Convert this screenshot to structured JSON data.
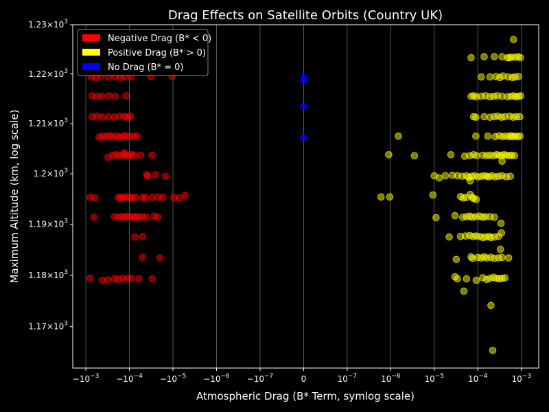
{
  "chart_data": {
    "type": "scatter",
    "title": "Drag Effects on Satellite Orbits (Country UK)",
    "xlabel": "Atmospheric Drag (B* Term, symlog scale)",
    "ylabel": "Maximum Altitude (km, log scale)",
    "x_scale": "symlog",
    "x_linthresh": 1e-07,
    "y_scale": "log",
    "xlim": [
      -0.002,
      0.0025
    ],
    "ylim": [
      1162,
      1230
    ],
    "x_ticks": [
      {
        "value": -0.001,
        "base": "−10",
        "exp": "−3"
      },
      {
        "value": -0.0001,
        "base": "−10",
        "exp": "−4"
      },
      {
        "value": -1e-05,
        "base": "−10",
        "exp": "−5"
      },
      {
        "value": -1e-06,
        "base": "−10",
        "exp": "−6"
      },
      {
        "value": -1e-07,
        "base": "−10",
        "exp": "−7"
      },
      {
        "value": 0,
        "base": "0",
        "exp": ""
      },
      {
        "value": 1e-07,
        "base": "10",
        "exp": "−7"
      },
      {
        "value": 1e-06,
        "base": "10",
        "exp": "−6"
      },
      {
        "value": 1e-05,
        "base": "10",
        "exp": "−5"
      },
      {
        "value": 0.0001,
        "base": "10",
        "exp": "−4"
      },
      {
        "value": 0.001,
        "base": "10",
        "exp": "−3"
      }
    ],
    "y_ticks": [
      {
        "value": 1170,
        "mant": "1.17",
        "base": "10",
        "exp": "3"
      },
      {
        "value": 1180,
        "mant": "1.18",
        "base": "10",
        "exp": "3"
      },
      {
        "value": 1190,
        "mant": "1.19",
        "base": "10",
        "exp": "3"
      },
      {
        "value": 1200,
        "mant": "1.2",
        "base": "10",
        "exp": "3"
      },
      {
        "value": 1210,
        "mant": "1.21",
        "base": "10",
        "exp": "3"
      },
      {
        "value": 1220,
        "mant": "1.22",
        "base": "10",
        "exp": "3"
      },
      {
        "value": 1230,
        "mant": "1.23",
        "base": "10",
        "exp": "3"
      }
    ],
    "grid": "vertical",
    "legend_position": "top-left",
    "series": [
      {
        "name": "Negative Drag (B* < 0)",
        "color": "#ff0000",
        "points": [
          [
            -0.00075,
            1219.4
          ],
          [
            -0.00058,
            1219.3
          ],
          [
            -0.00045,
            1219.6
          ],
          [
            -0.0003,
            1219.4
          ],
          [
            -0.00021,
            1219.5
          ],
          [
            -0.00016,
            1219.3
          ],
          [
            -0.00013,
            1219.5
          ],
          [
            -9e-05,
            1219.4
          ],
          [
            -3.2e-05,
            1219.5
          ],
          [
            -1.05e-05,
            1219.5
          ],
          [
            -0.00072,
            1215.6
          ],
          [
            -0.00056,
            1215.5
          ],
          [
            -0.00043,
            1215.5
          ],
          [
            -0.0003,
            1215.6
          ],
          [
            -0.00021,
            1215.5
          ],
          [
            -0.00012,
            1215.6
          ],
          [
            -0.00071,
            1211.4
          ],
          [
            -0.00055,
            1211.5
          ],
          [
            -0.00042,
            1211.3
          ],
          [
            -0.0003,
            1211.4
          ],
          [
            -0.00022,
            1211.3
          ],
          [
            -0.00017,
            1211.5
          ],
          [
            -0.00013,
            1211.4
          ],
          [
            -0.00011,
            1211.3
          ],
          [
            -9.4e-05,
            1211.5
          ],
          [
            -0.0005,
            1207.3
          ],
          [
            -0.00042,
            1207.5
          ],
          [
            -0.00035,
            1207.4
          ],
          [
            -0.00029,
            1207.6
          ],
          [
            -0.00025,
            1207.4
          ],
          [
            -0.0002,
            1207.5
          ],
          [
            -0.00017,
            1207.3
          ],
          [
            -0.00014,
            1207.5
          ],
          [
            -0.00012,
            1207.6
          ],
          [
            -0.0001,
            1207.4
          ],
          [
            -8e-05,
            1207.5
          ],
          [
            -6.6e-05,
            1207.5
          ],
          [
            -0.00024,
            1203.7
          ],
          [
            -0.0002,
            1203.8
          ],
          [
            -0.00017,
            1203.6
          ],
          [
            -0.00014,
            1203.8
          ],
          [
            -0.00012,
            1203.7
          ],
          [
            -0.0001,
            1203.6
          ],
          [
            -9e-05,
            1203.8
          ],
          [
            -7.6e-05,
            1203.7
          ],
          [
            -5.5e-05,
            1203.7
          ],
          [
            -3e-05,
            1203.7
          ],
          [
            -0.00013,
            1204.2
          ],
          [
            -0.00031,
            1203.3
          ],
          [
            -4e-05,
            1199.8
          ],
          [
            -3.8e-05,
            1199.5
          ],
          [
            -2.5e-05,
            1199.8
          ],
          [
            -1.5e-05,
            1199.5
          ],
          [
            -0.0008,
            1195.3
          ],
          [
            -0.00062,
            1195.2
          ],
          [
            -0.00018,
            1195.3
          ],
          [
            -0.00016,
            1195.2
          ],
          [
            -0.00014,
            1195.3
          ],
          [
            -0.00012,
            1195.4
          ],
          [
            -0.0001,
            1195.3
          ],
          [
            -8.8e-05,
            1195.2
          ],
          [
            -7.2e-05,
            1195.3
          ],
          [
            -5e-05,
            1195.3
          ],
          [
            -4.3e-05,
            1195.3
          ],
          [
            -3e-05,
            1195.3
          ],
          [
            -2.2e-05,
            1195.4
          ],
          [
            -1.7e-05,
            1195.3
          ],
          [
            -9.5e-06,
            1195.3
          ],
          [
            -7.2e-06,
            1195.2
          ],
          [
            -5.3e-06,
            1195.7
          ],
          [
            -0.00065,
            1191.4
          ],
          [
            -0.00022,
            1191.5
          ],
          [
            -0.00018,
            1191.4
          ],
          [
            -0.00015,
            1191.5
          ],
          [
            -0.00013,
            1191.4
          ],
          [
            -0.00011,
            1191.6
          ],
          [
            -9.5e-05,
            1191.5
          ],
          [
            -8e-05,
            1191.4
          ],
          [
            -7e-05,
            1191.5
          ],
          [
            -6e-05,
            1191.4
          ],
          [
            -5e-05,
            1191.5
          ],
          [
            -4e-05,
            1191.4
          ],
          [
            -2.7e-05,
            1191.6
          ],
          [
            -2.2e-05,
            1191.4
          ],
          [
            -7.5e-05,
            1187.5
          ],
          [
            -5e-05,
            1187.6
          ],
          [
            -5e-05,
            1183.5
          ],
          [
            -2e-05,
            1183.4
          ],
          [
            -0.0008,
            1179.4
          ],
          [
            -0.00042,
            1179.0
          ],
          [
            -0.00031,
            1179.1
          ],
          [
            -0.00022,
            1179.3
          ],
          [
            -0.00018,
            1179.2
          ],
          [
            -0.00014,
            1179.4
          ],
          [
            -0.00011,
            1179.3
          ],
          [
            -9e-05,
            1179.4
          ],
          [
            -6e-05,
            1179.3
          ],
          [
            -3e-05,
            1179.3
          ]
        ]
      },
      {
        "name": "Positive Drag (B* > 0)",
        "color": "#ffff00",
        "points": [
          [
            0.00066,
            1227.0
          ],
          [
            7e-05,
            1223.3
          ],
          [
            0.00014,
            1223.5
          ],
          [
            0.00024,
            1223.5
          ],
          [
            0.00036,
            1223.5
          ],
          [
            0.00048,
            1223.3
          ],
          [
            0.00053,
            1223.3
          ],
          [
            0.0006,
            1223.4
          ],
          [
            0.00072,
            1223.4
          ],
          [
            0.00084,
            1223.5
          ],
          [
            0.00095,
            1223.3
          ],
          [
            0.00012,
            1219.4
          ],
          [
            0.00019,
            1219.4
          ],
          [
            0.00026,
            1219.5
          ],
          [
            0.00032,
            1219.3
          ],
          [
            0.00038,
            1219.6
          ],
          [
            0.0005,
            1219.4
          ],
          [
            0.00062,
            1219.3
          ],
          [
            0.00072,
            1219.4
          ],
          [
            0.00086,
            1219.5
          ],
          [
            7e-05,
            1215.5
          ],
          [
            8e-05,
            1215.6
          ],
          [
            9.2e-05,
            1215.4
          ],
          [
            0.00012,
            1215.5
          ],
          [
            0.00015,
            1215.6
          ],
          [
            0.00019,
            1215.4
          ],
          [
            0.00023,
            1215.5
          ],
          [
            0.00028,
            1215.6
          ],
          [
            0.00036,
            1215.5
          ],
          [
            0.00048,
            1215.4
          ],
          [
            0.00058,
            1215.5
          ],
          [
            0.00066,
            1215.6
          ],
          [
            0.00075,
            1215.4
          ],
          [
            0.00086,
            1215.5
          ],
          [
            0.00096,
            1215.6
          ],
          [
            8e-05,
            1211.4
          ],
          [
            9e-05,
            1211.3
          ],
          [
            0.00014,
            1211.4
          ],
          [
            0.00019,
            1211.3
          ],
          [
            0.00024,
            1211.4
          ],
          [
            0.00029,
            1211.5
          ],
          [
            0.00035,
            1211.3
          ],
          [
            0.00042,
            1211.4
          ],
          [
            0.00054,
            1211.5
          ],
          [
            0.00065,
            1211.3
          ],
          [
            0.00077,
            1211.4
          ],
          [
            0.00092,
            1211.4
          ],
          [
            1.5e-06,
            1207.5
          ],
          [
            9e-05,
            1207.5
          ],
          [
            0.00017,
            1207.5
          ],
          [
            0.00025,
            1207.4
          ],
          [
            0.00031,
            1207.6
          ],
          [
            0.00037,
            1207.4
          ],
          [
            0.00044,
            1207.5
          ],
          [
            0.00052,
            1207.4
          ],
          [
            0.00058,
            1207.6
          ],
          [
            0.00064,
            1207.4
          ],
          [
            0.00072,
            1207.5
          ],
          [
            0.00082,
            1207.4
          ],
          [
            0.00093,
            1207.5
          ],
          [
            9e-07,
            1203.8
          ],
          [
            3.5e-06,
            1203.6
          ],
          [
            2.4e-05,
            1203.8
          ],
          [
            5e-05,
            1203.5
          ],
          [
            6.5e-05,
            1203.6
          ],
          [
            8e-05,
            1203.8
          ],
          [
            9.5e-05,
            1203.6
          ],
          [
            0.00013,
            1203.7
          ],
          [
            0.00016,
            1203.6
          ],
          [
            0.00019,
            1203.7
          ],
          [
            0.00023,
            1203.6
          ],
          [
            0.00027,
            1203.8
          ],
          [
            0.00031,
            1203.7
          ],
          [
            0.00035,
            1203.6
          ],
          [
            0.0004,
            1203.8
          ],
          [
            0.00046,
            1203.7
          ],
          [
            0.00053,
            1203.6
          ],
          [
            0.0006,
            1203.7
          ],
          [
            0.0007,
            1203.6
          ],
          [
            0.00036,
            1202.5
          ],
          [
            1e-05,
            1199.6
          ],
          [
            1.3e-05,
            1199.2
          ],
          [
            1.8e-05,
            1199.6
          ],
          [
            2.6e-05,
            1199.7
          ],
          [
            3.4e-05,
            1199.6
          ],
          [
            4.4e-05,
            1199.5
          ],
          [
            5.5e-05,
            1199.6
          ],
          [
            6.2e-05,
            1199.3
          ],
          [
            7.2e-05,
            1199.5
          ],
          [
            8.4e-05,
            1199.6
          ],
          [
            0.0001,
            1199.4
          ],
          [
            0.00012,
            1199.5
          ],
          [
            0.00014,
            1199.6
          ],
          [
            0.00016,
            1199.5
          ],
          [
            0.00018,
            1199.4
          ],
          [
            0.00021,
            1199.6
          ],
          [
            0.00025,
            1199.4
          ],
          [
            0.0003,
            1199.5
          ],
          [
            0.00036,
            1199.6
          ],
          [
            0.00045,
            1199.4
          ],
          [
            0.00056,
            1199.5
          ],
          [
            6.7e-05,
            1198.6
          ],
          [
            6e-07,
            1195.4
          ],
          [
            9.5e-07,
            1195.4
          ],
          [
            9.3e-06,
            1195.8
          ],
          [
            4e-05,
            1195.5
          ],
          [
            4.6e-05,
            1195.2
          ],
          [
            5.4e-05,
            1195.3
          ],
          [
            6.7e-05,
            1195.9
          ],
          [
            7.5e-05,
            1195.3
          ],
          [
            8e-05,
            1195.1
          ],
          [
            9.2e-05,
            1194.9
          ],
          [
            1.1e-05,
            1191.3
          ],
          [
            3e-05,
            1191.7
          ],
          [
            4.5e-05,
            1191.4
          ],
          [
            5.5e-05,
            1191.5
          ],
          [
            6.5e-05,
            1191.6
          ],
          [
            7.5e-05,
            1191.4
          ],
          [
            9e-05,
            1191.5
          ],
          [
            0.00011,
            1191.6
          ],
          [
            0.00013,
            1191.4
          ],
          [
            0.00015,
            1191.5
          ],
          [
            0.00019,
            1191.5
          ],
          [
            0.00024,
            1191.4
          ],
          [
            0.00034,
            1190.2
          ],
          [
            2.2e-05,
            1187.5
          ],
          [
            4e-05,
            1187.6
          ],
          [
            5.2e-05,
            1187.7
          ],
          [
            6.5e-05,
            1187.8
          ],
          [
            7.8e-05,
            1187.6
          ],
          [
            9.2e-05,
            1187.7
          ],
          [
            0.00011,
            1187.6
          ],
          [
            0.00013,
            1187.4
          ],
          [
            0.00015,
            1187.5
          ],
          [
            0.00018,
            1187.6
          ],
          [
            0.0002,
            1187.4
          ],
          [
            0.00024,
            1187.5
          ],
          [
            0.0003,
            1187.6
          ],
          [
            0.00035,
            1188.3
          ],
          [
            3.2e-05,
            1183.1
          ],
          [
            7e-05,
            1183.6
          ],
          [
            7.6e-05,
            1183.3
          ],
          [
            0.0001,
            1183.5
          ],
          [
            0.00012,
            1183.4
          ],
          [
            0.00014,
            1183.6
          ],
          [
            0.00016,
            1183.4
          ],
          [
            0.0002,
            1183.5
          ],
          [
            0.00024,
            1183.3
          ],
          [
            0.0003,
            1183.4
          ],
          [
            0.00036,
            1183.5
          ],
          [
            0.00051,
            1183.4
          ],
          [
            0.00033,
            1185.1
          ],
          [
            3e-05,
            1179.7
          ],
          [
            3.4e-05,
            1179.3
          ],
          [
            5.5e-05,
            1179.3
          ],
          [
            9.2e-05,
            1179.0
          ],
          [
            0.00013,
            1179.5
          ],
          [
            0.00016,
            1179.2
          ],
          [
            0.00019,
            1179.4
          ],
          [
            0.00023,
            1179.6
          ],
          [
            0.00027,
            1179.4
          ],
          [
            0.00031,
            1179.3
          ],
          [
            0.00036,
            1179.4
          ],
          [
            0.00042,
            1179.5
          ],
          [
            4.8e-05,
            1176.9
          ],
          [
            0.0002,
            1174.1
          ],
          [
            0.00022,
            1165.4
          ]
        ]
      },
      {
        "name": "No Drag (B* = 0)",
        "color": "#0000ff",
        "points": [
          [
            0,
            1218.7
          ],
          [
            0,
            1219.3
          ],
          [
            0,
            1213.5
          ],
          [
            0,
            1207.2
          ]
        ]
      }
    ]
  }
}
